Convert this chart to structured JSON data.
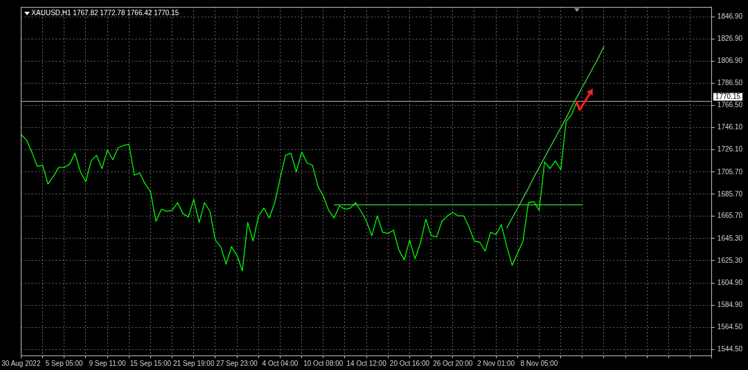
{
  "chart_data": {
    "type": "line",
    "title": "XAUUSD,H1 1767.82 1772.78 1766.42 1770.15",
    "categories": [
      "30 Aug 2022",
      null,
      null,
      null,
      null,
      null,
      null,
      null,
      "5 Sep 05:00",
      null,
      null,
      null,
      null,
      null,
      null,
      null,
      "9 Sep 11:00",
      null,
      null,
      null,
      null,
      null,
      null,
      null,
      "15 Sep 15:00",
      null,
      null,
      null,
      null,
      null,
      null,
      null,
      "21 Sep 19:00",
      null,
      null,
      null,
      null,
      null,
      null,
      null,
      "27 Sep 23:00",
      null,
      null,
      null,
      null,
      null,
      null,
      null,
      "4 Oct 04:00",
      null,
      null,
      null,
      null,
      null,
      null,
      null,
      "10 Oct 08:00",
      null,
      null,
      null,
      null,
      null,
      null,
      null,
      "14 Oct 12:00",
      null,
      null,
      null,
      null,
      null,
      null,
      null,
      "20 Oct 16:00",
      null,
      null,
      null,
      null,
      null,
      null,
      null,
      "26 Oct 20:00",
      null,
      null,
      null,
      null,
      null,
      null,
      null,
      "2 Nov 01:00",
      null,
      null,
      null,
      null,
      null,
      null,
      null,
      "8 Nov 05:00",
      null,
      null,
      null,
      null,
      null,
      null,
      null,
      null,
      null,
      null,
      null,
      null,
      null,
      null,
      null,
      null,
      null,
      null,
      null,
      null,
      null,
      null,
      null,
      null,
      null,
      null,
      null,
      null,
      null,
      null,
      null,
      null
    ],
    "ylim": [
      1539,
      1856
    ],
    "yticks": [
      {
        "value": 1544.5,
        "label": "1544.50"
      },
      {
        "value": 1564.5,
        "label": "1564.50"
      },
      {
        "value": 1584.9,
        "label": "1584.90"
      },
      {
        "value": 1604.9,
        "label": "1604.90"
      },
      {
        "value": 1625.3,
        "label": "1625.30"
      },
      {
        "value": 1645.3,
        "label": "1645.30"
      },
      {
        "value": 1665.7,
        "label": "1665.70"
      },
      {
        "value": 1685.7,
        "label": "1685.70"
      },
      {
        "value": 1705.7,
        "label": "1705.70"
      },
      {
        "value": 1726.1,
        "label": "1726.10"
      },
      {
        "value": 1746.1,
        "label": "1746.10"
      },
      {
        "value": 1766.5,
        "label": "1766.50"
      },
      {
        "value": 1786.5,
        "label": "1786.50"
      },
      {
        "value": 1806.9,
        "label": "1806.90"
      },
      {
        "value": 1826.9,
        "label": "1826.90"
      },
      {
        "value": 1846.9,
        "label": "1846.90"
      }
    ],
    "grid": true,
    "marker": "none",
    "line_style": "solid",
    "series": [
      {
        "color": "#00ff00",
        "values": [
          1740,
          1735,
          1724,
          1711,
          1712,
          1695,
          1702,
          1710,
          1710,
          1713,
          1723,
          1706,
          1697,
          1716,
          1721,
          1709,
          1726,
          1717,
          1728,
          1730,
          1731,
          1703,
          1705,
          1695,
          1688,
          1661,
          1672,
          1670,
          1671,
          1678,
          1668,
          1665,
          1681,
          1660,
          1678,
          1670,
          1644,
          1638,
          1622,
          1638,
          1630,
          1616,
          1660,
          1643,
          1666,
          1673,
          1664,
          1678,
          1700,
          1721,
          1723,
          1706,
          1724,
          1714,
          1712,
          1693,
          1684,
          1671,
          1664,
          1675,
          1672,
          1673,
          1678,
          1670,
          1661,
          1648,
          1666,
          1651,
          1650,
          1653,
          1635,
          1626,
          1644,
          1627,
          1641,
          1663,
          1648,
          1647,
          1661,
          1666,
          1669,
          1666,
          1666,
          1656,
          1643,
          1642,
          1634,
          1651,
          1649,
          1658,
          1638,
          1621,
          1632,
          1643,
          1678,
          1679,
          1671,
          1715,
          1709,
          1716,
          1708,
          1752,
          1758,
          1770,
          null,
          null,
          null,
          null,
          null,
          null,
          null,
          null,
          null,
          null,
          null,
          null,
          null,
          null,
          null,
          null,
          null,
          null,
          null,
          null,
          null,
          null,
          null,
          null,
          null
        ]
      },
      {
        "color": "#3cdc3c",
        "values": [
          null,
          null,
          null,
          null,
          null,
          null,
          null,
          null,
          null,
          null,
          null,
          null,
          null,
          null,
          null,
          null,
          null,
          null,
          null,
          null,
          null,
          null,
          null,
          null,
          null,
          null,
          null,
          null,
          null,
          null,
          null,
          null,
          null,
          null,
          null,
          null,
          null,
          null,
          null,
          null,
          null,
          null,
          null,
          null,
          null,
          null,
          null,
          null,
          null,
          null,
          null,
          null,
          null,
          null,
          null,
          null,
          null,
          null,
          1676,
          1676,
          1676,
          1676,
          1676,
          1676,
          1676,
          1676,
          1676,
          1676,
          1676,
          1676,
          1676,
          1676,
          1676,
          1676,
          1676,
          1676,
          1676,
          1676,
          1676,
          1676,
          1676,
          1676,
          1676,
          1676,
          1676,
          1676,
          1676,
          1676,
          1676,
          1676,
          1676,
          1676,
          1676,
          1676,
          1676,
          1676,
          1676,
          1676,
          1676,
          1676,
          1676,
          1676,
          1676,
          1676,
          1676,
          null,
          null,
          null,
          null,
          null,
          null,
          null,
          null,
          null,
          null,
          null,
          null,
          null,
          null,
          null,
          null,
          null,
          null,
          null,
          null,
          null,
          null,
          null,
          null
        ]
      },
      {
        "color": "#3cdc3c",
        "values": [
          null,
          null,
          null,
          null,
          null,
          null,
          null,
          null,
          null,
          null,
          null,
          null,
          null,
          null,
          null,
          null,
          null,
          null,
          null,
          null,
          null,
          null,
          null,
          null,
          null,
          null,
          null,
          null,
          null,
          null,
          null,
          null,
          null,
          null,
          null,
          null,
          null,
          null,
          null,
          null,
          null,
          null,
          null,
          null,
          null,
          null,
          null,
          null,
          null,
          null,
          null,
          null,
          null,
          null,
          null,
          null,
          null,
          null,
          null,
          null,
          null,
          null,
          null,
          null,
          null,
          null,
          null,
          null,
          null,
          null,
          null,
          null,
          null,
          null,
          null,
          null,
          null,
          null,
          null,
          null,
          null,
          null,
          null,
          null,
          null,
          null,
          null,
          null,
          null,
          null,
          1655,
          1664,
          1673,
          1682,
          1691,
          1701,
          1710,
          1719,
          1728,
          1737,
          1746,
          1755,
          1765,
          1774,
          1783,
          1792,
          1801,
          1810,
          1820,
          null,
          null,
          null,
          null,
          null,
          null,
          null,
          null,
          null,
          null,
          null,
          null,
          null,
          null,
          null,
          null,
          null,
          null,
          null,
          null
        ]
      }
    ],
    "ref_lines": [
      {
        "axis": "y",
        "value": 1770.15,
        "label": "1770.15",
        "color": "#b4b4b4"
      }
    ]
  }
}
